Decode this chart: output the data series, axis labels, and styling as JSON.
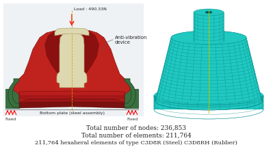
{
  "background_color": "#ffffff",
  "text_line1": "Total number of nodes: 236,853",
  "text_line2": "Total number of elements: 211,764",
  "text_line3": "211,764 hexaheral elements of type C3D8R (Steel) C3D8RH (Rubber)",
  "text_fontsize": 6.5,
  "text_color": "#222222",
  "fig_width": 3.99,
  "fig_height": 2.31,
  "dpi": 100,
  "rubber_color": "#c0231e",
  "rubber_dark": "#8b1010",
  "rubber_highlight": "#d04040",
  "steel_color": "#ddd8b0",
  "steel_edge": "#b0a870",
  "green_color": "#3a7040",
  "green_edge": "#1a4020",
  "bottom_dark": "#7a1010"
}
